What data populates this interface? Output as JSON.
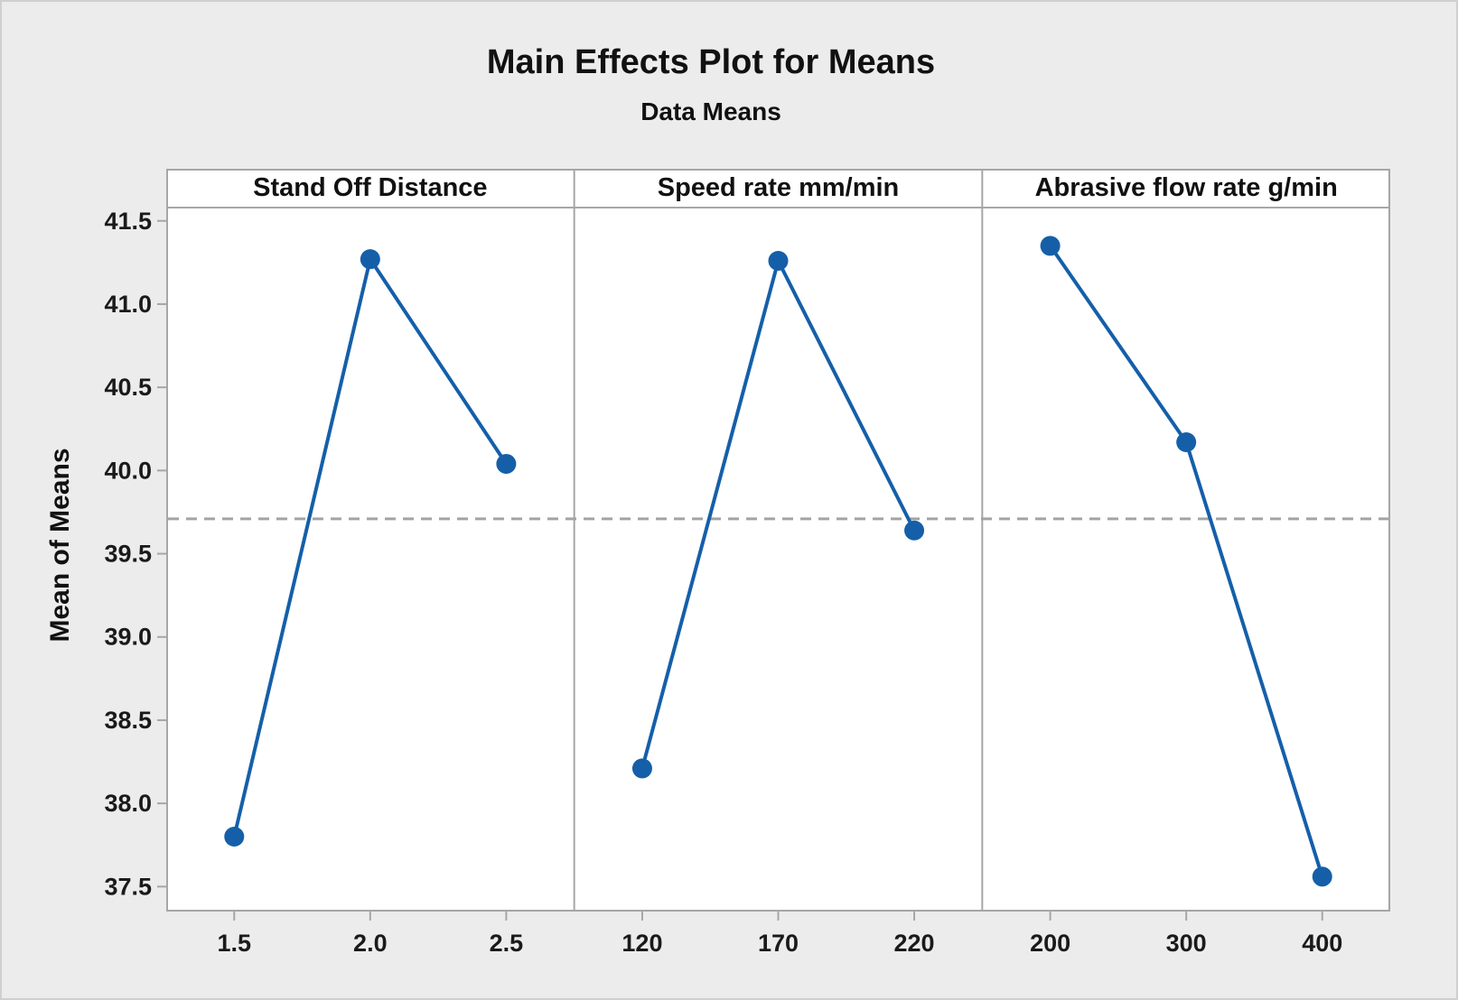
{
  "chart_data": {
    "type": "line",
    "title": "Main Effects Plot for Means",
    "subtitle": "Data Means",
    "ylabel": "Mean of Means",
    "ylim": [
      37.35,
      41.58
    ],
    "yticks": [
      "37.5",
      "38.0",
      "38.5",
      "39.0",
      "39.5",
      "40.0",
      "40.5",
      "41.0",
      "41.5"
    ],
    "reference_line": 39.71,
    "reference_line_style": "dashed",
    "grid": "off",
    "legend": "none",
    "panels": [
      {
        "header": "Stand Off Distance",
        "categories": [
          "1.5",
          "2.0",
          "2.5"
        ],
        "values": [
          37.8,
          41.27,
          40.04
        ]
      },
      {
        "header": "Speed rate mm/min",
        "categories": [
          "120",
          "170",
          "220"
        ],
        "values": [
          38.21,
          41.26,
          39.64
        ]
      },
      {
        "header": "Abrasive flow rate g/min",
        "categories": [
          "200",
          "300",
          "400"
        ],
        "values": [
          41.35,
          40.17,
          37.56
        ]
      }
    ],
    "colors": {
      "line": "#155FA9",
      "marker": "#155FA9",
      "reference": "#A3A3A3",
      "frame": "#A6A6A6",
      "panel_bg": "#FFFFFF",
      "figure_bg": "#ECECEC",
      "text": "#1A1A1A"
    }
  }
}
